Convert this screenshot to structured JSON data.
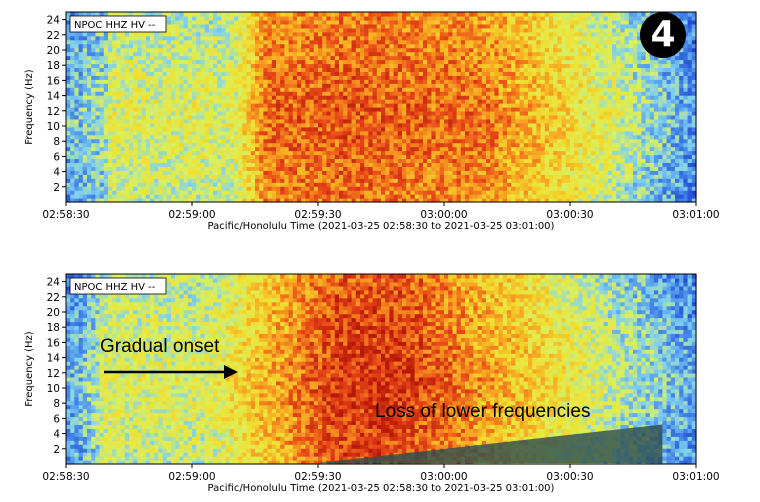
{
  "badge": "4",
  "colors": {
    "ramp": [
      "#1f3fc8",
      "#3f7fe8",
      "#7fd0f0",
      "#d8f060",
      "#f0e030",
      "#f8a020",
      "#e84818",
      "#b81808"
    ],
    "axis": "#000000",
    "arrow": "#000000",
    "shade": "#2f4f4f"
  },
  "chart_data": [
    {
      "type": "heatmap",
      "station_label": "NPOC HHZ HV --",
      "ylabel": "Frequency (Hz)",
      "xlabel": "Pacific/Honolulu Time (2021-03-25 02:58:30 to 2021-03-25 03:01:00)",
      "x_tick_labels": [
        "02:58:30",
        "02:59:00",
        "02:59:30",
        "03:00:00",
        "03:00:30",
        "03:01:00"
      ],
      "x_tick_seconds": [
        0,
        30,
        60,
        90,
        120,
        150
      ],
      "xlim_seconds": [
        0,
        150
      ],
      "y_ticks": [
        2,
        4,
        6,
        8,
        10,
        12,
        14,
        16,
        18,
        20,
        22,
        24
      ],
      "ylim": [
        0,
        25
      ],
      "intensity_model": {
        "onset_time_s": 42,
        "peak_time_s": 68,
        "decay_end_s": 150,
        "low_freq_cutoff_after_s": null
      }
    },
    {
      "type": "heatmap",
      "station_label": "NPOC HHZ HV --",
      "ylabel": "Frequency (Hz)",
      "xlabel": "Pacific/Honolulu Time (2021-03-25 02:58:30 to 2021-03-25 03:01:00)",
      "x_tick_labels": [
        "02:58:30",
        "02:59:00",
        "02:59:30",
        "03:00:00",
        "03:00:30",
        "03:01:00"
      ],
      "x_tick_seconds": [
        0,
        30,
        60,
        90,
        120,
        150
      ],
      "xlim_seconds": [
        0,
        150
      ],
      "y_ticks": [
        2,
        4,
        6,
        8,
        10,
        12,
        14,
        16,
        18,
        20,
        22,
        24
      ],
      "ylim": [
        0,
        25
      ],
      "annotations": {
        "onset_text": "Gradual onset",
        "loss_text": "Loss of lower frequencies"
      },
      "loss_wedge": {
        "start_time_s": 60,
        "end_time_s": 142,
        "end_freq_hz": 5.2
      }
    }
  ]
}
